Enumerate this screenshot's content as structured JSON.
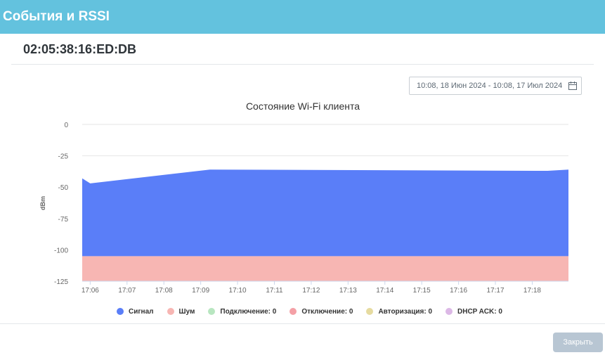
{
  "modal": {
    "title": "События и RSSI"
  },
  "device": {
    "mac": "02:05:38:16:ED:DB"
  },
  "date_range": {
    "value": "10:08, 18 Июн 2024 - 10:08, 17 Июл 2024",
    "icon": "calendar-icon"
  },
  "chart_data": {
    "type": "area",
    "title": "Состояние Wi-Fi клиента",
    "xlabel": "",
    "ylabel": "dBm",
    "ylim": [
      -125,
      0
    ],
    "yticks": [
      0,
      -25,
      -50,
      -75,
      -100,
      -125
    ],
    "x_tick_labels": [
      "17:06",
      "17:07",
      "17:08",
      "17:09",
      "17:10",
      "17:11",
      "17:12",
      "17:13",
      "17:14",
      "17:15",
      "17:16",
      "17:17",
      "17:18"
    ],
    "x_range": [
      "17:05:47",
      "17:18:59"
    ],
    "series": [
      {
        "name": "Сигнал",
        "color": "#5a7ef8",
        "points": [
          [
            "17:05:47",
            -43
          ],
          [
            "17:06:00",
            -47
          ],
          [
            "17:09:15",
            -36
          ],
          [
            "17:18:25",
            -37
          ],
          [
            "17:18:59",
            -36
          ]
        ]
      },
      {
        "name": "Шум",
        "color": "#f7b6b3",
        "points": [
          [
            "17:05:47",
            -105
          ],
          [
            "17:18:59",
            -105
          ]
        ]
      }
    ],
    "legend": {
      "position": "bottom",
      "items": [
        {
          "label": "Сигнал",
          "color": "#5a7ef8"
        },
        {
          "label": "Шум",
          "color": "#f7b6b3"
        },
        {
          "label": "Подключение: 0",
          "color": "#b8e6c0"
        },
        {
          "label": "Отключение: 0",
          "color": "#f4a0a6"
        },
        {
          "label": "Авторизация: 0",
          "color": "#e6dba0"
        },
        {
          "label": "DHCP ACK: 0",
          "color": "#dcb8e6"
        }
      ]
    },
    "grid": true
  },
  "footer": {
    "close_label": "Закрыть"
  }
}
